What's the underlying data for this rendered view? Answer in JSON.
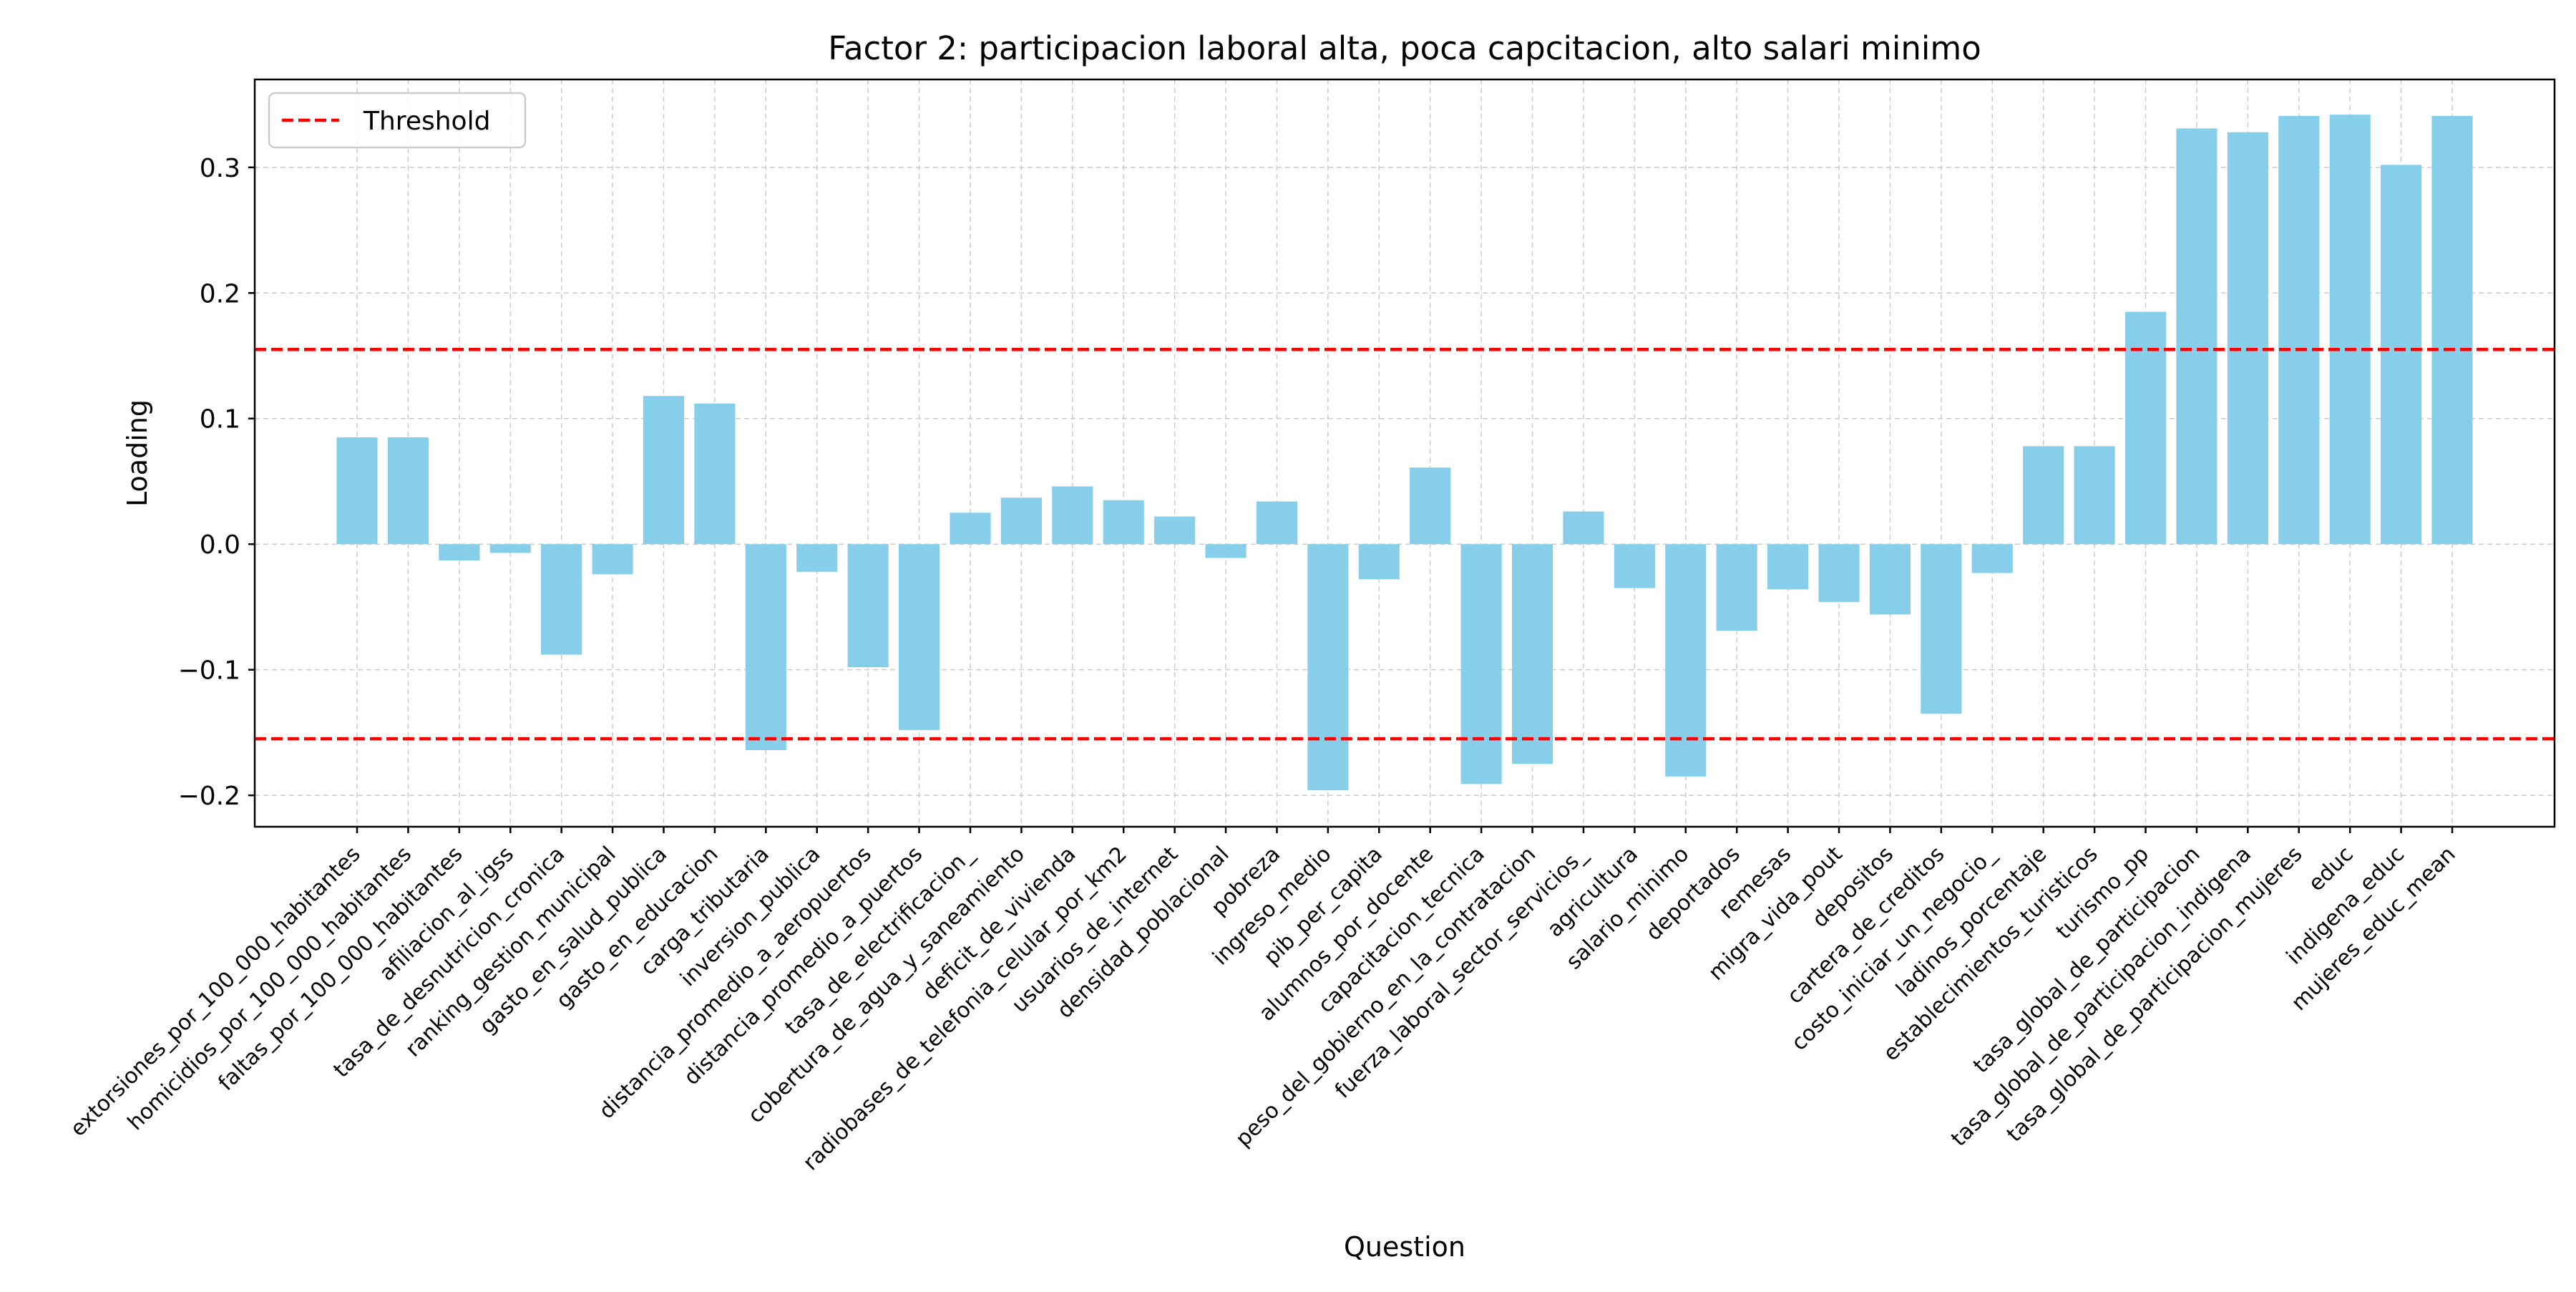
{
  "chart_data": {
    "type": "bar",
    "title": "Factor 2: participacion laboral alta, poca capcitacion, alto salari minimo",
    "xlabel": "Question",
    "ylabel": "Loading",
    "ylim": [
      -0.225,
      0.37
    ],
    "yticks": [
      -0.2,
      -0.1,
      0.0,
      0.1,
      0.2,
      0.3
    ],
    "ytick_labels": [
      "−0.2",
      "−0.1",
      "0.0",
      "0.1",
      "0.2",
      "0.3"
    ],
    "grid": true,
    "legend": {
      "position": "top-left",
      "entries": [
        "Threshold"
      ]
    },
    "threshold": 0.155,
    "colors": {
      "bar": "#87ceeb",
      "threshold": "#ff0000",
      "grid": "#cccccc"
    },
    "categories": [
      "extorsiones_por_100_000_habitantes",
      "homicidios_por_100_000_habitantes",
      "faltas_por_100_000_habitantes",
      "afiliacion_al_igss",
      "tasa_de_desnutricion_cronica",
      "ranking_gestion_municipal",
      "gasto_en_salud_publica",
      "gasto_en_educacion",
      "carga_tributaria",
      "inversion_publica",
      "distancia_promedio_a_aeropuertos",
      "distancia_promedio_a_puertos",
      "tasa_de_electrificacion_",
      "cobertura_de_agua_y_saneamiento",
      "deficit_de_vivienda",
      "radiobases_de_telefonia_celular_por_km2",
      "usuarios_de_internet",
      "densidad_poblacional",
      "pobreza",
      "ingreso_medio",
      "pib_per_capita",
      "alumnos_por_docente",
      "capacitacion_tecnica",
      "peso_del_gobierno_en_la_contratacion",
      "fuerza_laboral_sector_servicios_",
      "agricultura",
      "salario_minimo",
      "deportados",
      "remesas",
      "migra_vida_pout",
      "depositos",
      "cartera_de_creditos",
      "costo_iniciar_un_negocio_",
      "ladinos_porcentaje",
      "establecimientos_turisticos",
      "turismo_pp",
      "tasa_global_de_participacion",
      "tasa_global_de_participacion_indigena",
      "tasa_global_de_participacion_mujeres",
      "educ",
      "indigena_educ",
      "mujeres_educ_mean"
    ],
    "values": [
      0.085,
      0.085,
      -0.013,
      -0.007,
      -0.088,
      -0.024,
      0.118,
      0.112,
      -0.164,
      -0.022,
      -0.098,
      -0.148,
      0.025,
      0.037,
      0.046,
      0.035,
      0.022,
      -0.011,
      0.034,
      -0.196,
      -0.028,
      0.061,
      -0.191,
      -0.175,
      0.026,
      -0.035,
      -0.185,
      -0.069,
      -0.036,
      -0.046,
      -0.056,
      -0.135,
      -0.023,
      0.078,
      0.078,
      0.185,
      0.331,
      0.328,
      0.341,
      0.342,
      0.302,
      0.341
    ]
  }
}
